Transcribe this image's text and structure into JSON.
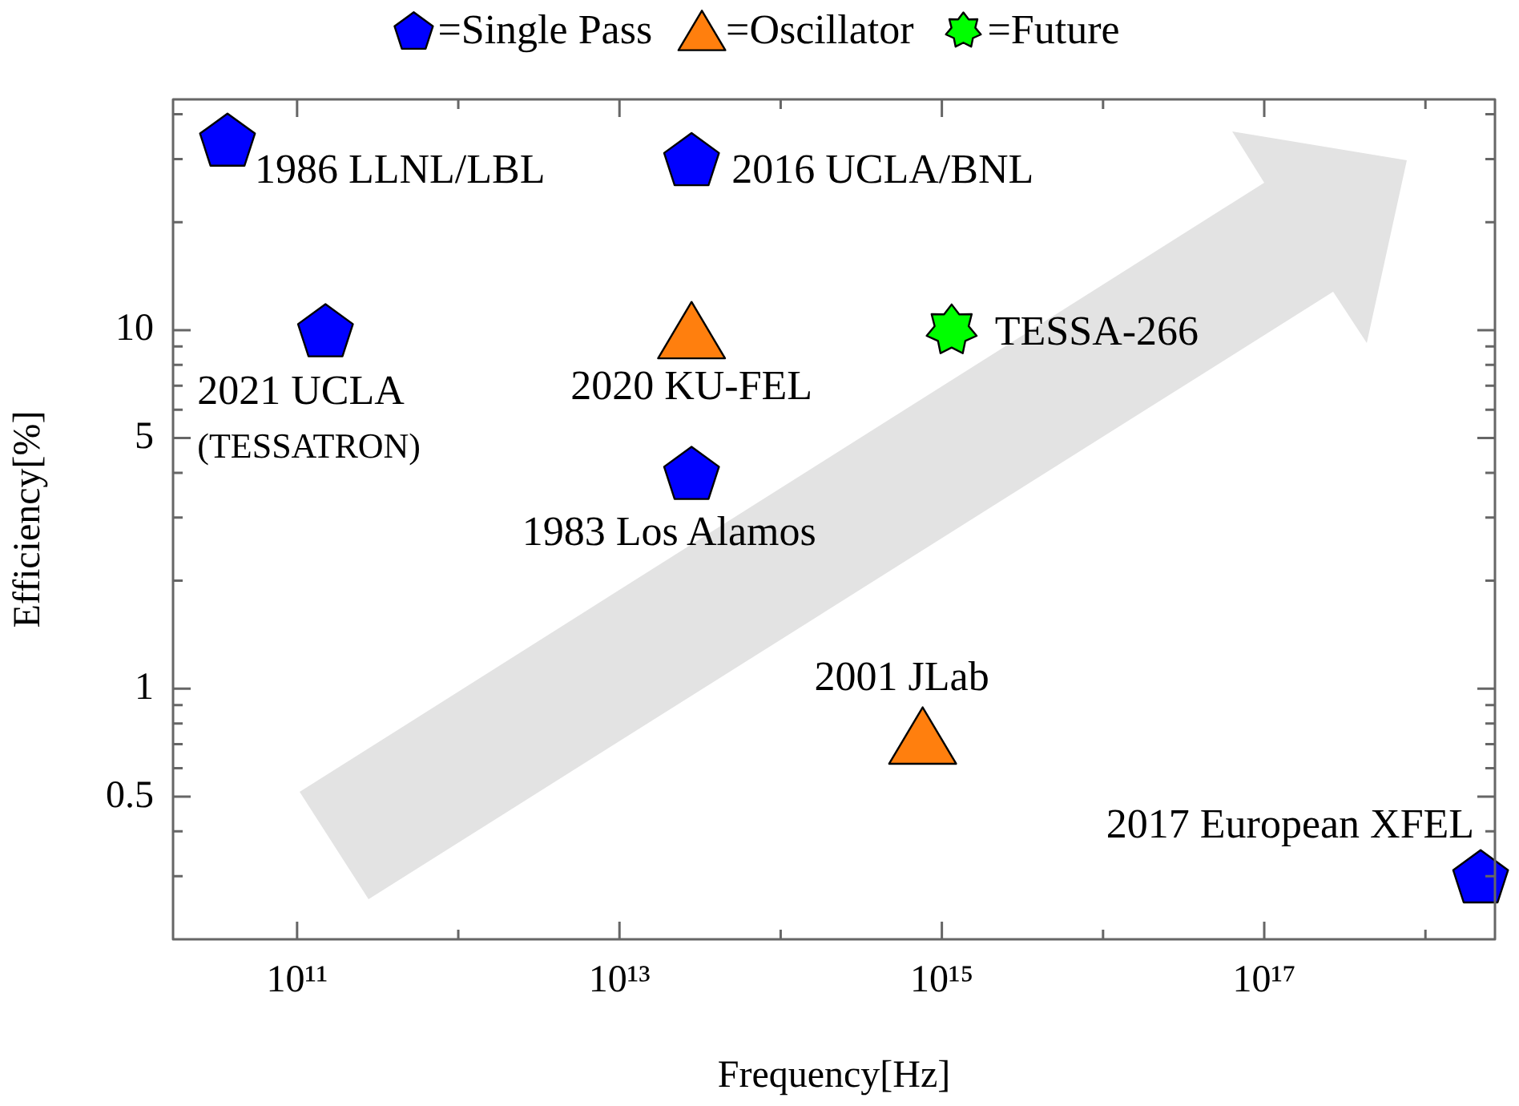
{
  "chart_data": {
    "type": "scatter",
    "xlabel": "Frequency[Hz]",
    "ylabel": "Efficiency[%]",
    "log": "xy",
    "grid": false,
    "legend": "top",
    "xlim": [
      17000000000.0,
      2.7e+18
    ],
    "xticks": [
      {
        "value": 100000000000.0,
        "label": "10¹¹"
      },
      {
        "value": 1000000000000.0,
        "label": null
      },
      {
        "value": 10000000000000.0,
        "label": "10¹³"
      },
      {
        "value": 100000000000000.0,
        "label": null
      },
      {
        "value": 1000000000000000.0,
        "label": "10¹⁵"
      },
      {
        "value": 1e+16,
        "label": null
      },
      {
        "value": 1e+17,
        "label": "10¹⁷"
      },
      {
        "value": 1e+18,
        "label": null
      }
    ],
    "ylim": [
      0.2,
      44
    ],
    "yticks": [
      {
        "value": 0.3,
        "label": null
      },
      {
        "value": 0.4,
        "label": null
      },
      0.5,
      {
        "value": 0.6,
        "label": null
      },
      {
        "value": 0.7,
        "label": null
      },
      {
        "value": 0.8,
        "label": null
      },
      {
        "value": 0.9,
        "label": null
      },
      1,
      {
        "value": 2,
        "label": null
      },
      {
        "value": 3,
        "label": null
      },
      {
        "value": 4,
        "label": null
      },
      5,
      {
        "value": 6,
        "label": null
      },
      {
        "value": 7,
        "label": null
      },
      {
        "value": 8,
        "label": null
      },
      {
        "value": 9,
        "label": null
      },
      10,
      {
        "value": 20,
        "label": null
      },
      {
        "value": 30,
        "label": null
      },
      {
        "value": 40,
        "label": null
      }
    ],
    "series": [
      {
        "name": "=Single Pass",
        "color": "#0000ff",
        "x": [
          37000000000.0,
          28000000000000.0,
          150000000000.0,
          28000000000000.0,
          2.2e+18
        ],
        "values": [
          34,
          30,
          10,
          4,
          0.3
        ]
      },
      {
        "name": "=Oscillator",
        "color": "#ff7f0e",
        "marker": "triangle",
        "x": [
          28000000000000.0,
          760000000000000.0
        ],
        "values": [
          10,
          0.74
        ]
      },
      {
        "name": "=Future",
        "color": "#00ff00",
        "marker": "star",
        "x": [
          1150000000000000.0
        ],
        "values": [
          10
        ]
      }
    ],
    "annotations": [
      {
        "text": "1986 LLNL/LBL",
        "x": 37000000000.0,
        "y": 34
      },
      {
        "text": "2016 UCLA/BNL",
        "x": 28000000000000.0,
        "y": 30
      },
      {
        "text": "2021 UCLA\n(TESSATRON)",
        "x": 150000000000.0,
        "y": 10
      },
      {
        "text": "2020 KU-FEL",
        "x": 28000000000000.0,
        "y": 10
      },
      {
        "text": "TESSA-266",
        "x": 1150000000000000.0,
        "y": 10
      },
      {
        "text": "1983 Los Alamos",
        "x": 28000000000000.0,
        "y": 4
      },
      {
        "text": "2001 JLab",
        "x": 760000000000000.0,
        "y": 0.74
      },
      {
        "text": "2017 European XFEL",
        "x": 2.2e+18,
        "y": 0.3
      }
    ]
  }
}
